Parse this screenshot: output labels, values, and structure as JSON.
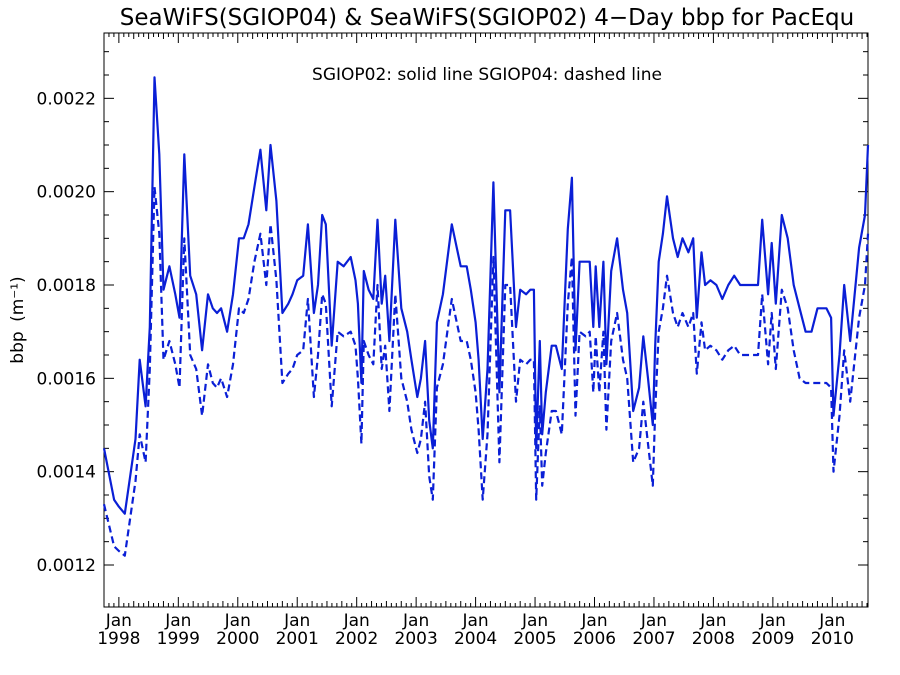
{
  "chart_data": {
    "type": "line",
    "title": "SeaWiFS(SGIOP04) & SeaWiFS(SGIOP02) 4−Day bbp for PacEqu",
    "annotation": "SGIOP02: solid line   SGIOP04: dashed line",
    "ylabel": "bbp",
    "ylabel_unit": "(m⁻¹)",
    "xlim": [
      1997.75,
      2010.6
    ],
    "ylim": [
      0.00111,
      0.00234
    ],
    "y_ticks": [
      0.0012,
      0.0014,
      0.0016,
      0.0018,
      0.002,
      0.0022
    ],
    "y_tick_labels": [
      "0.0012",
      "0.0014",
      "0.0016",
      "0.0018",
      "0.0020",
      "0.0022"
    ],
    "x_major": [
      1998,
      1999,
      2000,
      2001,
      2002,
      2003,
      2004,
      2005,
      2006,
      2007,
      2008,
      2009,
      2010
    ],
    "x_month_label": "Jan",
    "x_year_labels": [
      "1998",
      "1999",
      "2000",
      "2001",
      "2002",
      "2003",
      "2004",
      "2005",
      "2006",
      "2007",
      "2008",
      "2009",
      "2010"
    ],
    "color": "#0a1fd6",
    "series": [
      {
        "name": "SGIOP02",
        "style": "solid",
        "x": [
          1997.75,
          1997.92,
          1998.0,
          1998.1,
          1998.28,
          1998.35,
          1998.45,
          1998.52,
          1998.6,
          1998.68,
          1998.75,
          1998.85,
          1998.95,
          1999.02,
          1999.1,
          1999.2,
          1999.3,
          1999.4,
          1999.5,
          1999.58,
          1999.65,
          1999.72,
          1999.82,
          1999.92,
          2000.02,
          2000.1,
          2000.18,
          2000.28,
          2000.38,
          2000.48,
          2000.55,
          2000.65,
          2000.75,
          2000.85,
          2000.92,
          2001.0,
          2001.1,
          2001.18,
          2001.28,
          2001.35,
          2001.42,
          2001.48,
          2001.58,
          2001.68,
          2001.78,
          2001.9,
          2001.98,
          2002.02,
          2002.08,
          2002.12,
          2002.2,
          2002.28,
          2002.35,
          2002.42,
          2002.48,
          2002.55,
          2002.65,
          2002.75,
          2002.85,
          2002.92,
          2003.02,
          2003.08,
          2003.15,
          2003.22,
          2003.28,
          2003.35,
          2003.45,
          2003.6,
          2003.75,
          2003.85,
          2003.92,
          2004.0,
          2004.05,
          2004.12,
          2004.2,
          2004.3,
          2004.4,
          2004.5,
          2004.58,
          2004.68,
          2004.75,
          2004.85,
          2004.92,
          2004.98,
          2005.02,
          2005.08,
          2005.12,
          2005.18,
          2005.28,
          2005.35,
          2005.45,
          2005.55,
          2005.62,
          2005.68,
          2005.75,
          2005.85,
          2005.92,
          2005.98,
          2006.02,
          2006.08,
          2006.15,
          2006.2,
          2006.28,
          2006.38,
          2006.48,
          2006.55,
          2006.65,
          2006.75,
          2006.82,
          2006.9,
          2006.98,
          2007.02,
          2007.08,
          2007.15,
          2007.22,
          2007.32,
          2007.4,
          2007.48,
          2007.58,
          2007.66,
          2007.72,
          2007.8,
          2007.86,
          2007.95,
          2008.05,
          2008.15,
          2008.25,
          2008.35,
          2008.45,
          2008.6,
          2008.75,
          2008.82,
          2008.92,
          2008.98,
          2009.05,
          2009.15,
          2009.25,
          2009.35,
          2009.45,
          2009.55,
          2009.65,
          2009.75,
          2009.9,
          2009.98,
          2010.02,
          2010.12,
          2010.2,
          2010.3,
          2010.45,
          2010.55,
          2010.6
        ],
        "y": [
          0.00145,
          0.00134,
          0.001325,
          0.00131,
          0.00147,
          0.00164,
          0.00154,
          0.00171,
          0.002245,
          0.00208,
          0.00179,
          0.00184,
          0.00178,
          0.00173,
          0.00208,
          0.00182,
          0.00178,
          0.00166,
          0.00178,
          0.00175,
          0.00174,
          0.00175,
          0.0017,
          0.00178,
          0.0019,
          0.0019,
          0.00193,
          0.00201,
          0.00209,
          0.00196,
          0.0021,
          0.00198,
          0.00174,
          0.00176,
          0.00178,
          0.00181,
          0.00182,
          0.00193,
          0.00174,
          0.0018,
          0.00195,
          0.00193,
          0.00167,
          0.00185,
          0.00184,
          0.00186,
          0.00181,
          0.00176,
          0.00159,
          0.00183,
          0.00179,
          0.00177,
          0.00194,
          0.00176,
          0.00182,
          0.00168,
          0.00194,
          0.00175,
          0.0017,
          0.00164,
          0.00156,
          0.0016,
          0.00168,
          0.00151,
          0.00145,
          0.00172,
          0.00178,
          0.00193,
          0.00184,
          0.00184,
          0.00179,
          0.00172,
          0.00164,
          0.00147,
          0.00162,
          0.00202,
          0.00157,
          0.00196,
          0.00196,
          0.00171,
          0.00179,
          0.00178,
          0.00179,
          0.00179,
          0.00145,
          0.00168,
          0.00148,
          0.00157,
          0.00167,
          0.00167,
          0.00162,
          0.00192,
          0.00203,
          0.00166,
          0.00185,
          0.00185,
          0.00185,
          0.00171,
          0.00184,
          0.00171,
          0.00185,
          0.00163,
          0.00183,
          0.0019,
          0.00179,
          0.00174,
          0.00153,
          0.00158,
          0.00169,
          0.0016,
          0.0015,
          0.00167,
          0.00185,
          0.00191,
          0.00199,
          0.0019,
          0.00186,
          0.0019,
          0.00187,
          0.0019,
          0.00173,
          0.00187,
          0.0018,
          0.00181,
          0.0018,
          0.00177,
          0.0018,
          0.00182,
          0.0018,
          0.0018,
          0.0018,
          0.00194,
          0.00178,
          0.00189,
          0.00176,
          0.00195,
          0.0019,
          0.0018,
          0.00175,
          0.0017,
          0.0017,
          0.00175,
          0.00175,
          0.00173,
          0.00152,
          0.00165,
          0.0018,
          0.00168,
          0.00188,
          0.00195,
          0.0021
        ]
      },
      {
        "name": "SGIOP04",
        "style": "dashed",
        "x": [
          1997.75,
          1997.92,
          1998.0,
          1998.1,
          1998.28,
          1998.35,
          1998.45,
          1998.52,
          1998.6,
          1998.68,
          1998.75,
          1998.85,
          1998.95,
          1999.02,
          1999.1,
          1999.2,
          1999.3,
          1999.4,
          1999.5,
          1999.58,
          1999.65,
          1999.72,
          1999.82,
          1999.92,
          2000.02,
          2000.1,
          2000.18,
          2000.28,
          2000.38,
          2000.48,
          2000.55,
          2000.65,
          2000.75,
          2000.85,
          2000.92,
          2001.0,
          2001.1,
          2001.18,
          2001.28,
          2001.35,
          2001.42,
          2001.48,
          2001.58,
          2001.68,
          2001.78,
          2001.9,
          2001.98,
          2002.02,
          2002.08,
          2002.12,
          2002.2,
          2002.28,
          2002.35,
          2002.42,
          2002.48,
          2002.55,
          2002.65,
          2002.75,
          2002.85,
          2002.92,
          2003.02,
          2003.08,
          2003.15,
          2003.22,
          2003.28,
          2003.35,
          2003.45,
          2003.6,
          2003.75,
          2003.85,
          2003.92,
          2004.0,
          2004.05,
          2004.12,
          2004.2,
          2004.3,
          2004.4,
          2004.5,
          2004.58,
          2004.68,
          2004.75,
          2004.85,
          2004.92,
          2004.98,
          2005.02,
          2005.08,
          2005.12,
          2005.18,
          2005.28,
          2005.35,
          2005.45,
          2005.55,
          2005.62,
          2005.68,
          2005.75,
          2005.85,
          2005.92,
          2005.98,
          2006.02,
          2006.08,
          2006.15,
          2006.2,
          2006.28,
          2006.38,
          2006.48,
          2006.55,
          2006.65,
          2006.75,
          2006.82,
          2006.9,
          2006.98,
          2007.02,
          2007.08,
          2007.15,
          2007.22,
          2007.32,
          2007.4,
          2007.48,
          2007.58,
          2007.66,
          2007.72,
          2007.8,
          2007.86,
          2007.95,
          2008.05,
          2008.15,
          2008.25,
          2008.35,
          2008.45,
          2008.6,
          2008.75,
          2008.82,
          2008.92,
          2008.98,
          2009.05,
          2009.15,
          2009.25,
          2009.35,
          2009.45,
          2009.55,
          2009.65,
          2009.75,
          2009.9,
          2009.98,
          2010.02,
          2010.12,
          2010.2,
          2010.3,
          2010.45,
          2010.55,
          2010.6
        ],
        "y": [
          0.00133,
          0.00124,
          0.00123,
          0.00122,
          0.00138,
          0.00148,
          0.00142,
          0.00162,
          0.00201,
          0.00191,
          0.00164,
          0.00168,
          0.00163,
          0.00158,
          0.0019,
          0.00165,
          0.00162,
          0.00152,
          0.00163,
          0.00159,
          0.00158,
          0.0016,
          0.00156,
          0.00163,
          0.00175,
          0.00174,
          0.00177,
          0.00185,
          0.00191,
          0.0018,
          0.00193,
          0.00181,
          0.00159,
          0.00161,
          0.00162,
          0.00165,
          0.00166,
          0.00177,
          0.00156,
          0.00165,
          0.00178,
          0.00176,
          0.00154,
          0.0017,
          0.00169,
          0.0017,
          0.00167,
          0.0016,
          0.00146,
          0.00168,
          0.00165,
          0.00163,
          0.0018,
          0.00162,
          0.00167,
          0.00153,
          0.00178,
          0.0016,
          0.00155,
          0.00149,
          0.00144,
          0.00147,
          0.00155,
          0.00139,
          0.00134,
          0.00158,
          0.00163,
          0.00177,
          0.00168,
          0.00168,
          0.00164,
          0.00157,
          0.00149,
          0.00134,
          0.00148,
          0.00186,
          0.00142,
          0.0018,
          0.0018,
          0.00155,
          0.00164,
          0.00163,
          0.00164,
          0.00164,
          0.00134,
          0.00154,
          0.00137,
          0.00144,
          0.00153,
          0.00153,
          0.00148,
          0.00176,
          0.00186,
          0.00152,
          0.0017,
          0.00169,
          0.0017,
          0.00157,
          0.00169,
          0.00157,
          0.0017,
          0.00149,
          0.00168,
          0.00174,
          0.00164,
          0.0016,
          0.00142,
          0.00145,
          0.00155,
          0.00146,
          0.00137,
          0.00153,
          0.0017,
          0.00175,
          0.00182,
          0.00174,
          0.00171,
          0.00174,
          0.00171,
          0.00174,
          0.00161,
          0.00172,
          0.00166,
          0.00167,
          0.00166,
          0.00164,
          0.00166,
          0.00167,
          0.00165,
          0.00165,
          0.00165,
          0.00178,
          0.00163,
          0.00174,
          0.00162,
          0.00179,
          0.00175,
          0.00166,
          0.0016,
          0.00159,
          0.00159,
          0.00159,
          0.00159,
          0.00158,
          0.0014,
          0.00152,
          0.00166,
          0.00155,
          0.00173,
          0.0018,
          0.00191
        ]
      }
    ]
  }
}
